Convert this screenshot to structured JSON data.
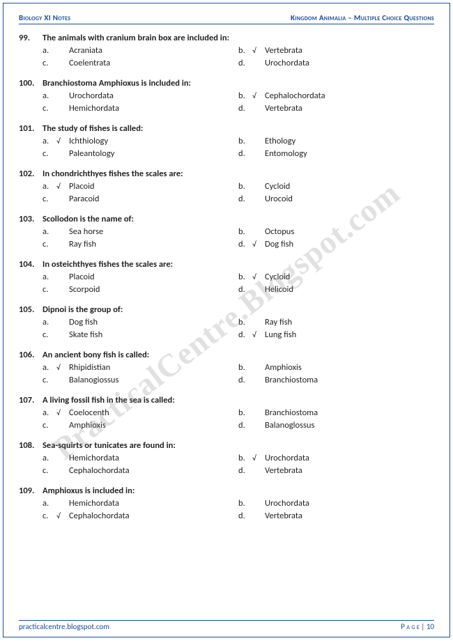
{
  "header": {
    "left": "Biology XI Notes",
    "right": "Kingdom Animalia – Multiple Choice Questions"
  },
  "footer": {
    "left": "practicalcentre.blogspot.com",
    "right": "P a g e | 10"
  },
  "watermark": "PracticalCentre.Blogspot.com",
  "questions": [
    {
      "n": "99.",
      "t": "The animals with cranium brain box are included in:",
      "o": [
        {
          "l": "a.",
          "c": "",
          "v": "Acraniata"
        },
        {
          "l": "b.",
          "c": "√",
          "v": "Vertebrata"
        },
        {
          "l": "c.",
          "c": "",
          "v": "Coelentrata"
        },
        {
          "l": "d.",
          "c": "",
          "v": "Urochordata"
        }
      ]
    },
    {
      "n": "100.",
      "t": "Branchiostoma Amphioxus is included in:",
      "o": [
        {
          "l": "a.",
          "c": "",
          "v": "Urochordata"
        },
        {
          "l": "b.",
          "c": "√",
          "v": "Cephalochordata"
        },
        {
          "l": "c.",
          "c": "",
          "v": "Hemichordata"
        },
        {
          "l": "d.",
          "c": "",
          "v": "Vertebrata"
        }
      ]
    },
    {
      "n": "101.",
      "t": "The study of fishes is called:",
      "o": [
        {
          "l": "a.",
          "c": "√",
          "v": "Ichthiology"
        },
        {
          "l": "b.",
          "c": "",
          "v": "Ethology"
        },
        {
          "l": "c.",
          "c": "",
          "v": "Paleantology"
        },
        {
          "l": "d.",
          "c": "",
          "v": "Entomology"
        }
      ]
    },
    {
      "n": "102.",
      "t": "In chondrichthyes fishes the scales are:",
      "o": [
        {
          "l": "a.",
          "c": "√",
          "v": "Placoid"
        },
        {
          "l": "b.",
          "c": "",
          "v": "Cycloid"
        },
        {
          "l": "c.",
          "c": "",
          "v": "Paracoid"
        },
        {
          "l": "d.",
          "c": "",
          "v": "Urocoid"
        }
      ]
    },
    {
      "n": "103.",
      "t": "Scollodon is the name of:",
      "o": [
        {
          "l": "a.",
          "c": "",
          "v": "Sea horse"
        },
        {
          "l": "b.",
          "c": "",
          "v": "Octopus"
        },
        {
          "l": "c.",
          "c": "",
          "v": "Ray fish"
        },
        {
          "l": "d.",
          "c": "√",
          "v": "Dog fish"
        }
      ]
    },
    {
      "n": "104.",
      "t": "In osteichthyes fishes the scales are:",
      "o": [
        {
          "l": "a.",
          "c": "",
          "v": "Placoid"
        },
        {
          "l": "b.",
          "c": "√",
          "v": "Cycloid"
        },
        {
          "l": "c.",
          "c": "",
          "v": "Scorpoid"
        },
        {
          "l": "d.",
          "c": "",
          "v": "Helicoid"
        }
      ]
    },
    {
      "n": "105.",
      "t": "Dipnoi is the group of:",
      "o": [
        {
          "l": "a.",
          "c": "",
          "v": "Dog fish"
        },
        {
          "l": "b.",
          "c": "",
          "v": "Ray fish"
        },
        {
          "l": "c.",
          "c": "",
          "v": "Skate fish"
        },
        {
          "l": "d.",
          "c": "√",
          "v": "Lung fish"
        }
      ]
    },
    {
      "n": "106.",
      "t": "An ancient bony fish is called:",
      "o": [
        {
          "l": "a.",
          "c": "√",
          "v": "Rhipidistian"
        },
        {
          "l": "b.",
          "c": "",
          "v": "Amphioxis"
        },
        {
          "l": "c.",
          "c": "",
          "v": "Balanogiossus"
        },
        {
          "l": "d.",
          "c": "",
          "v": "Branchiostoma"
        }
      ]
    },
    {
      "n": "107.",
      "t": "A living fossil fish in the sea is called:",
      "o": [
        {
          "l": "a.",
          "c": "√",
          "v": "Coelocenth"
        },
        {
          "l": "b.",
          "c": "",
          "v": "Branchiostoma"
        },
        {
          "l": "c.",
          "c": "",
          "v": "Amphioxis"
        },
        {
          "l": "d.",
          "c": "",
          "v": "Balanoglossus"
        }
      ]
    },
    {
      "n": "108.",
      "t": "Sea-squirts or tunicates are found in:",
      "o": [
        {
          "l": "a.",
          "c": "",
          "v": "Hemichordata"
        },
        {
          "l": "b.",
          "c": "√",
          "v": "Urochordata"
        },
        {
          "l": "c.",
          "c": "",
          "v": "Cephalochordata"
        },
        {
          "l": "d.",
          "c": "",
          "v": "Vertebrata"
        }
      ]
    },
    {
      "n": "109.",
      "t": "Amphioxus is included in:",
      "o": [
        {
          "l": "a.",
          "c": "",
          "v": "Hemichordata"
        },
        {
          "l": "b.",
          "c": "",
          "v": "Urochordata"
        },
        {
          "l": "c.",
          "c": "√",
          "v": "Cephalochordata"
        },
        {
          "l": "d.",
          "c": "",
          "v": "Vertebrata"
        }
      ]
    }
  ]
}
